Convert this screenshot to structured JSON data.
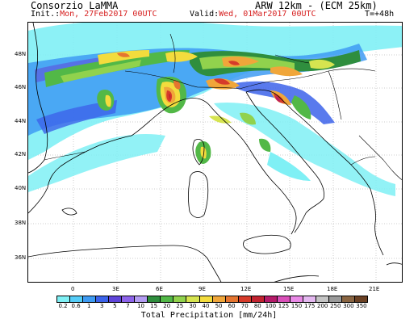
{
  "header": {
    "org": "Consorzio LaMMA",
    "model": "ARW 12km - (ECM 25km)",
    "init_label": "Init.:",
    "init_value": "Mon, 27Feb2017 00UTC",
    "valid_label": "Valid:",
    "valid_value": "Wed, 01Mar2017 00UTC",
    "timestep": "T=+48h"
  },
  "axes": {
    "lat_labels": [
      "48N",
      "46N",
      "44N",
      "42N",
      "40N",
      "38N",
      "36N"
    ],
    "lon_labels": [
      "0",
      "3E",
      "6E",
      "9E",
      "12E",
      "15E",
      "18E",
      "21E"
    ]
  },
  "legend": {
    "title": "Total Precipitation [mm/24h]",
    "levels": [
      "0.2",
      "0.6",
      "1",
      "3",
      "5",
      "7",
      "10",
      "15",
      "20",
      "25",
      "30",
      "40",
      "50",
      "60",
      "70",
      "80",
      "100",
      "125",
      "150",
      "175",
      "200",
      "250",
      "300",
      "350"
    ],
    "colors": [
      "#7ff0f5",
      "#55cdf8",
      "#3e9bf3",
      "#3c63ea",
      "#5f45d9",
      "#8d63ea",
      "#b39cf2",
      "#2f8e3e",
      "#52b847",
      "#91d24d",
      "#d6e450",
      "#f3dc3d",
      "#f0a63a",
      "#e57530",
      "#d63b2a",
      "#c22330",
      "#b51b69",
      "#d94fb8",
      "#e989e6",
      "#e4b8f0",
      "#c4c4c4",
      "#9a9a9a",
      "#8a6542",
      "#6b4124"
    ]
  }
}
